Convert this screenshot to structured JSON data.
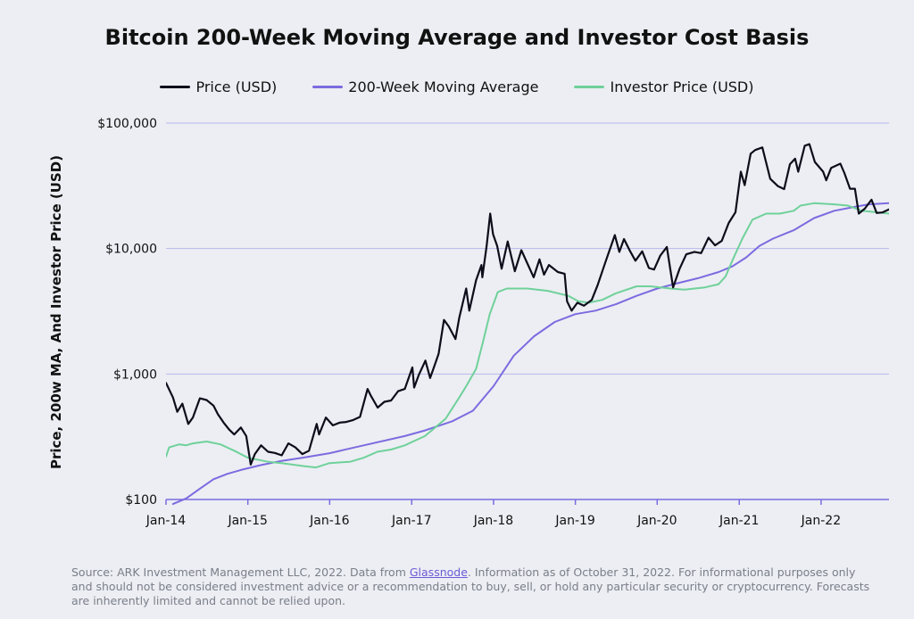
{
  "chart_data": {
    "type": "line",
    "title": "Bitcoin 200-Week Moving Average and Investor Cost Basis",
    "ylabel": "Price, 200w MA, And Investor Price (USD)",
    "xlabel": "",
    "y_scale": "log",
    "ylim": [
      100,
      100000
    ],
    "xlim": [
      "2014-01-01",
      "2022-10-31"
    ],
    "y_ticks": [
      {
        "value": 100,
        "label": "$100"
      },
      {
        "value": 1000,
        "label": "$1,000"
      },
      {
        "value": 10000,
        "label": "$10,000"
      },
      {
        "value": 100000,
        "label": "$100,000"
      }
    ],
    "x_ticks": [
      {
        "value": "2014-01-01",
        "label": "Jan-14"
      },
      {
        "value": "2015-01-01",
        "label": "Jan-15"
      },
      {
        "value": "2016-01-01",
        "label": "Jan-16"
      },
      {
        "value": "2017-01-01",
        "label": "Jan-17"
      },
      {
        "value": "2018-01-01",
        "label": "Jan-18"
      },
      {
        "value": "2019-01-01",
        "label": "Jan-19"
      },
      {
        "value": "2020-01-01",
        "label": "Jan-20"
      },
      {
        "value": "2021-01-01",
        "label": "Jan-21"
      },
      {
        "value": "2022-01-01",
        "label": "Jan-22"
      }
    ],
    "grid": "horizontal",
    "legend": "top-center",
    "series": [
      {
        "name": "Price (USD)",
        "color": "#0d0d1a",
        "points": [
          [
            "2014-01-01",
            850
          ],
          [
            "2014-02-01",
            650
          ],
          [
            "2014-02-20",
            500
          ],
          [
            "2014-03-15",
            580
          ],
          [
            "2014-04-10",
            400
          ],
          [
            "2014-05-01",
            450
          ],
          [
            "2014-06-01",
            640
          ],
          [
            "2014-07-01",
            620
          ],
          [
            "2014-08-01",
            560
          ],
          [
            "2014-08-20",
            480
          ],
          [
            "2014-09-15",
            410
          ],
          [
            "2014-10-10",
            360
          ],
          [
            "2014-11-01",
            330
          ],
          [
            "2014-12-01",
            375
          ],
          [
            "2014-12-25",
            320
          ],
          [
            "2015-01-14",
            190
          ],
          [
            "2015-02-01",
            230
          ],
          [
            "2015-03-01",
            270
          ],
          [
            "2015-04-01",
            240
          ],
          [
            "2015-05-01",
            235
          ],
          [
            "2015-06-01",
            225
          ],
          [
            "2015-07-01",
            280
          ],
          [
            "2015-08-01",
            260
          ],
          [
            "2015-09-01",
            230
          ],
          [
            "2015-10-01",
            245
          ],
          [
            "2015-11-04",
            400
          ],
          [
            "2015-11-15",
            330
          ],
          [
            "2015-12-15",
            450
          ],
          [
            "2016-01-15",
            390
          ],
          [
            "2016-02-15",
            410
          ],
          [
            "2016-03-15",
            415
          ],
          [
            "2016-04-15",
            430
          ],
          [
            "2016-05-15",
            455
          ],
          [
            "2016-06-18",
            760
          ],
          [
            "2016-07-01",
            680
          ],
          [
            "2016-08-02",
            540
          ],
          [
            "2016-09-01",
            600
          ],
          [
            "2016-10-01",
            615
          ],
          [
            "2016-11-01",
            730
          ],
          [
            "2016-12-01",
            760
          ],
          [
            "2017-01-04",
            1130
          ],
          [
            "2017-01-12",
            780
          ],
          [
            "2017-02-01",
            980
          ],
          [
            "2017-03-03",
            1280
          ],
          [
            "2017-03-24",
            930
          ],
          [
            "2017-04-15",
            1200
          ],
          [
            "2017-05-01",
            1450
          ],
          [
            "2017-05-25",
            2700
          ],
          [
            "2017-06-15",
            2400
          ],
          [
            "2017-07-15",
            1900
          ],
          [
            "2017-08-01",
            2800
          ],
          [
            "2017-09-01",
            4800
          ],
          [
            "2017-09-15",
            3200
          ],
          [
            "2017-10-15",
            5600
          ],
          [
            "2017-11-08",
            7400
          ],
          [
            "2017-11-12",
            5900
          ],
          [
            "2017-12-01",
            10500
          ],
          [
            "2017-12-17",
            19000
          ],
          [
            "2017-12-30",
            13000
          ],
          [
            "2018-01-17",
            10500
          ],
          [
            "2018-02-06",
            6900
          ],
          [
            "2018-03-05",
            11400
          ],
          [
            "2018-04-06",
            6600
          ],
          [
            "2018-05-05",
            9700
          ],
          [
            "2018-06-29",
            5900
          ],
          [
            "2018-07-25",
            8200
          ],
          [
            "2018-08-14",
            6200
          ],
          [
            "2018-09-05",
            7400
          ],
          [
            "2018-10-15",
            6500
          ],
          [
            "2018-11-14",
            6300
          ],
          [
            "2018-11-25",
            3800
          ],
          [
            "2018-12-15",
            3200
          ],
          [
            "2019-01-10",
            3700
          ],
          [
            "2019-02-08",
            3500
          ],
          [
            "2019-03-15",
            3900
          ],
          [
            "2019-04-10",
            5100
          ],
          [
            "2019-05-15",
            7800
          ],
          [
            "2019-06-26",
            12800
          ],
          [
            "2019-07-16",
            9400
          ],
          [
            "2019-08-06",
            11900
          ],
          [
            "2019-09-01",
            9600
          ],
          [
            "2019-09-26",
            8000
          ],
          [
            "2019-10-26",
            9500
          ],
          [
            "2019-11-25",
            7000
          ],
          [
            "2019-12-18",
            6800
          ],
          [
            "2020-01-15",
            8800
          ],
          [
            "2020-02-13",
            10300
          ],
          [
            "2020-03-12",
            4900
          ],
          [
            "2020-04-10",
            6900
          ],
          [
            "2020-05-10",
            9000
          ],
          [
            "2020-06-15",
            9400
          ],
          [
            "2020-07-15",
            9200
          ],
          [
            "2020-08-17",
            12200
          ],
          [
            "2020-09-15",
            10600
          ],
          [
            "2020-10-15",
            11500
          ],
          [
            "2020-11-15",
            16000
          ],
          [
            "2020-12-15",
            19500
          ],
          [
            "2021-01-08",
            41000
          ],
          [
            "2021-01-25",
            32000
          ],
          [
            "2021-02-21",
            57000
          ],
          [
            "2021-03-13",
            61000
          ],
          [
            "2021-04-14",
            64000
          ],
          [
            "2021-05-19",
            36000
          ],
          [
            "2021-06-22",
            31500
          ],
          [
            "2021-07-20",
            29800
          ],
          [
            "2021-08-15",
            47000
          ],
          [
            "2021-09-07",
            52000
          ],
          [
            "2021-09-21",
            41000
          ],
          [
            "2021-10-20",
            66000
          ],
          [
            "2021-11-10",
            68000
          ],
          [
            "2021-12-04",
            49000
          ],
          [
            "2022-01-10",
            41000
          ],
          [
            "2022-01-24",
            35000
          ],
          [
            "2022-02-15",
            44000
          ],
          [
            "2022-03-28",
            47500
          ],
          [
            "2022-04-15",
            40000
          ],
          [
            "2022-05-10",
            30000
          ],
          [
            "2022-06-01",
            30000
          ],
          [
            "2022-06-18",
            19000
          ],
          [
            "2022-07-15",
            20800
          ],
          [
            "2022-08-14",
            24500
          ],
          [
            "2022-09-06",
            19200
          ],
          [
            "2022-10-01",
            19400
          ],
          [
            "2022-10-31",
            20500
          ]
        ]
      },
      {
        "name": "200-Week Moving Average",
        "color": "#7b6be0",
        "points": [
          [
            "2014-02-01",
            92
          ],
          [
            "2014-04-01",
            102
          ],
          [
            "2014-06-01",
            122
          ],
          [
            "2014-08-01",
            145
          ],
          [
            "2014-10-01",
            160
          ],
          [
            "2014-12-01",
            172
          ],
          [
            "2015-03-01",
            188
          ],
          [
            "2015-06-01",
            203
          ],
          [
            "2015-09-01",
            215
          ],
          [
            "2016-01-01",
            234
          ],
          [
            "2016-06-01",
            270
          ],
          [
            "2016-12-01",
            320
          ],
          [
            "2017-03-01",
            355
          ],
          [
            "2017-07-01",
            420
          ],
          [
            "2017-10-01",
            510
          ],
          [
            "2018-01-01",
            800
          ],
          [
            "2018-04-01",
            1400
          ],
          [
            "2018-07-01",
            2000
          ],
          [
            "2018-10-01",
            2600
          ],
          [
            "2019-01-01",
            3000
          ],
          [
            "2019-04-01",
            3200
          ],
          [
            "2019-07-01",
            3600
          ],
          [
            "2019-10-01",
            4200
          ],
          [
            "2020-01-01",
            4800
          ],
          [
            "2020-04-01",
            5300
          ],
          [
            "2020-07-01",
            5800
          ],
          [
            "2020-10-01",
            6500
          ],
          [
            "2020-12-01",
            7200
          ],
          [
            "2021-02-01",
            8500
          ],
          [
            "2021-04-01",
            10500
          ],
          [
            "2021-06-01",
            12000
          ],
          [
            "2021-09-01",
            14000
          ],
          [
            "2021-12-01",
            17500
          ],
          [
            "2022-03-01",
            20000
          ],
          [
            "2022-06-01",
            21500
          ],
          [
            "2022-08-01",
            22500
          ],
          [
            "2022-10-31",
            23000
          ]
        ]
      },
      {
        "name": "Investor Price (USD)",
        "color": "#6fd19a",
        "points": [
          [
            "2014-01-01",
            220
          ],
          [
            "2014-01-15",
            260
          ],
          [
            "2014-03-01",
            275
          ],
          [
            "2014-04-01",
            270
          ],
          [
            "2014-05-01",
            280
          ],
          [
            "2014-07-01",
            290
          ],
          [
            "2014-09-01",
            275
          ],
          [
            "2014-11-01",
            245
          ],
          [
            "2015-01-01",
            215
          ],
          [
            "2015-04-01",
            200
          ],
          [
            "2015-06-01",
            195
          ],
          [
            "2015-09-01",
            185
          ],
          [
            "2015-11-01",
            180
          ],
          [
            "2016-01-01",
            195
          ],
          [
            "2016-04-01",
            200
          ],
          [
            "2016-06-01",
            215
          ],
          [
            "2016-08-01",
            240
          ],
          [
            "2016-10-01",
            250
          ],
          [
            "2016-12-01",
            270
          ],
          [
            "2017-03-01",
            320
          ],
          [
            "2017-06-01",
            440
          ],
          [
            "2017-08-01",
            650
          ],
          [
            "2017-09-01",
            800
          ],
          [
            "2017-10-15",
            1100
          ],
          [
            "2017-11-15",
            1800
          ],
          [
            "2017-12-15",
            3000
          ],
          [
            "2018-01-20",
            4500
          ],
          [
            "2018-03-01",
            4800
          ],
          [
            "2018-06-01",
            4800
          ],
          [
            "2018-09-01",
            4600
          ],
          [
            "2018-12-01",
            4200
          ],
          [
            "2019-01-15",
            3800
          ],
          [
            "2019-03-01",
            3700
          ],
          [
            "2019-05-01",
            3900
          ],
          [
            "2019-07-01",
            4400
          ],
          [
            "2019-10-01",
            5000
          ],
          [
            "2019-12-01",
            5000
          ],
          [
            "2020-03-01",
            4800
          ],
          [
            "2020-05-01",
            4700
          ],
          [
            "2020-08-01",
            4900
          ],
          [
            "2020-10-01",
            5200
          ],
          [
            "2020-11-01",
            6000
          ],
          [
            "2020-12-01",
            8000
          ],
          [
            "2021-01-15",
            12000
          ],
          [
            "2021-03-01",
            17000
          ],
          [
            "2021-05-01",
            19000
          ],
          [
            "2021-07-01",
            19000
          ],
          [
            "2021-09-01",
            20000
          ],
          [
            "2021-10-01",
            22000
          ],
          [
            "2021-12-01",
            23000
          ],
          [
            "2022-03-01",
            22500
          ],
          [
            "2022-05-01",
            22000
          ],
          [
            "2022-07-01",
            20000
          ],
          [
            "2022-09-01",
            19500
          ],
          [
            "2022-10-31",
            19000
          ]
        ]
      }
    ]
  },
  "footer": {
    "source_before": "Source: ARK Investment Management LLC, 2022. Data from ",
    "source_link": "Glassnode",
    "source_after": ". Information as of October 31, 2022. For informational purposes only and should not be considered investment advice or a recommendation to buy, sell, or hold any particular security or cryptocurrency. Forecasts are inherently limited and cannot be relied upon."
  }
}
